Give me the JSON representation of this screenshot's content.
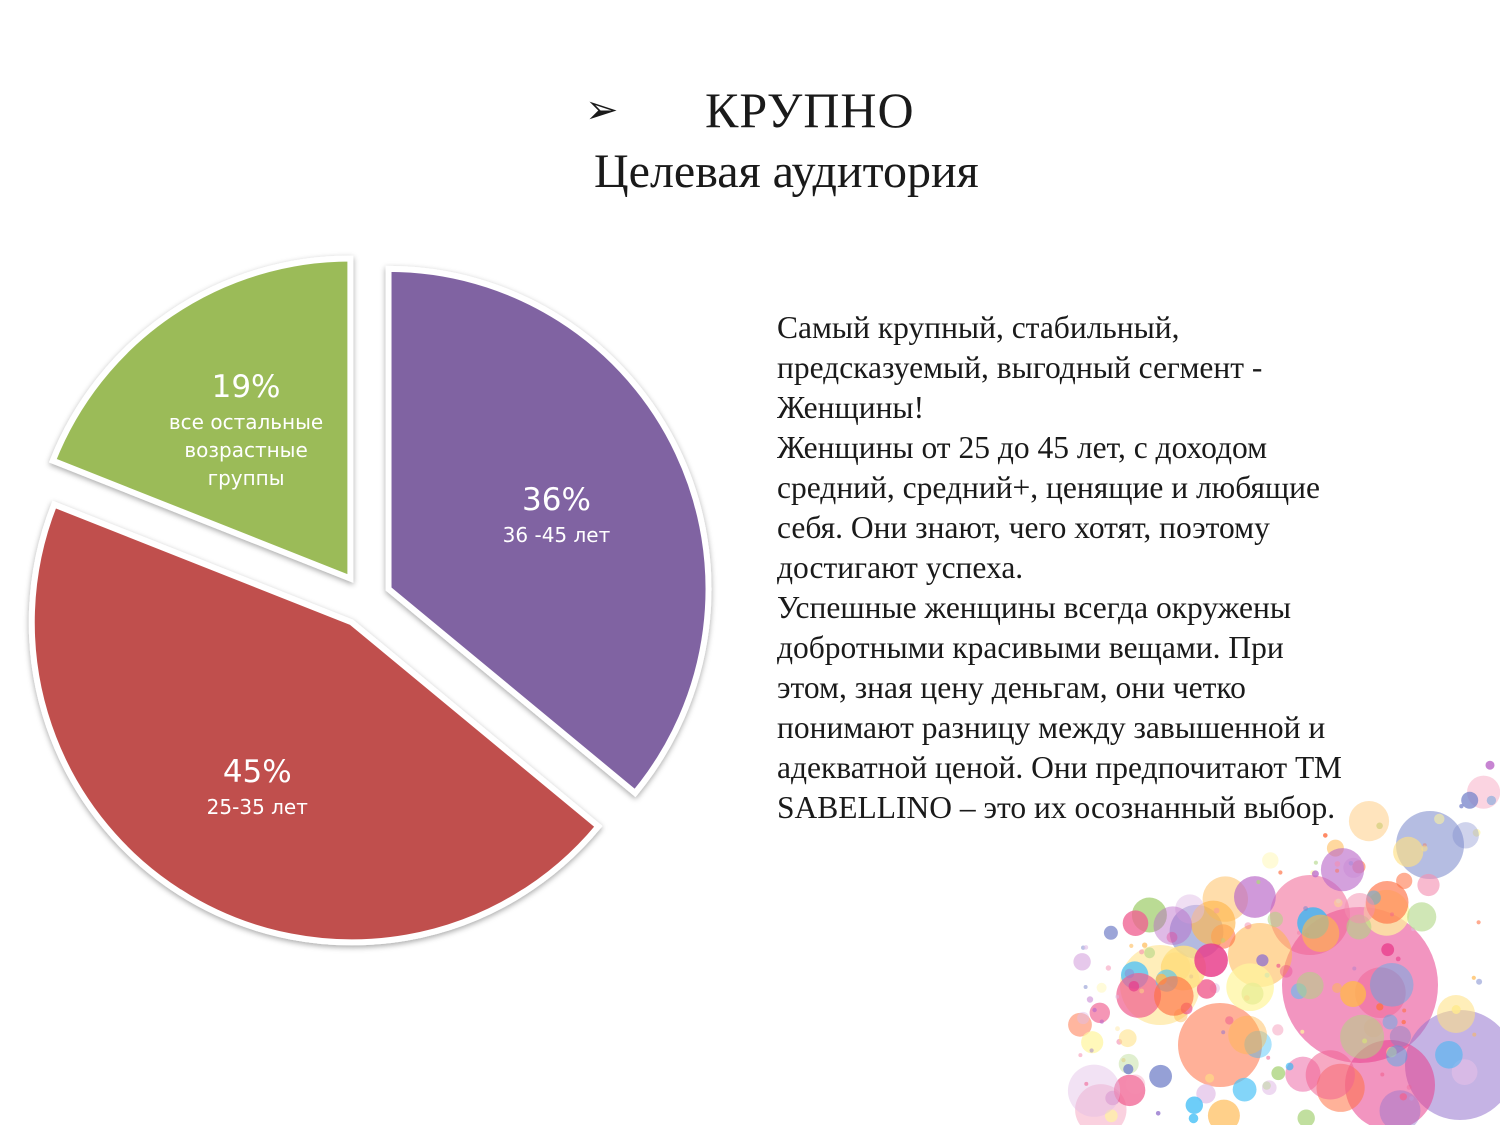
{
  "slide": {
    "bullet": "➢",
    "title": "КРУПНО",
    "subtitle": "Целевая аудитория",
    "paragraphs": [
      "Самый крупный, стабильный, предсказуемый, выгодный сегмент - Женщины!",
      "Женщины от 25 до 45 лет, с доходом средний, средний+, ценящие и любящие себя. Они знают, чего хотят, поэтому достигают успеха.",
      "Успешные женщины всегда окружены добротными красивыми вещами. При этом, зная цену деньгам, они четко понимают разницу между завышенной и адекватной ценой. Они предпочитают ТМ SABELLINO – это их осознанный выбор."
    ]
  },
  "chart_data": {
    "type": "pie",
    "exploded": true,
    "slices": [
      {
        "label": "36%",
        "description": [
          "36 -45 лет"
        ],
        "value": 36,
        "color": "#8064A2"
      },
      {
        "label": "45%",
        "description": [
          "25-35 лет"
        ],
        "value": 45,
        "color": "#C0504D"
      },
      {
        "label": "19%",
        "description": [
          "все остальные",
          "возрастные",
          "группы"
        ],
        "value": 19,
        "color": "#9BBB59"
      }
    ]
  },
  "decoration": {
    "name": "colorful-bubbles",
    "colors": [
      "#e83e8c",
      "#f06292",
      "#f48fb1",
      "#ff7043",
      "#ffb74d",
      "#ffe082",
      "#fff59d",
      "#ba68c8",
      "#9575cd",
      "#7986cb",
      "#4fc3f7",
      "#29b6f6",
      "#aed581",
      "#e1bee7"
    ]
  }
}
